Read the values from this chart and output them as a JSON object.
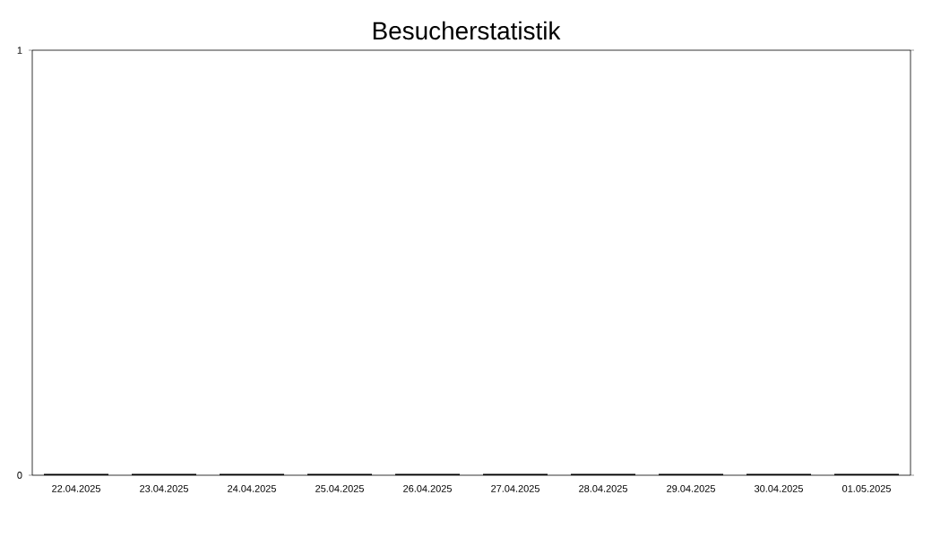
{
  "chart_data": {
    "type": "bar",
    "title": "Besucherstatistik",
    "categories": [
      "22.04.2025",
      "23.04.2025",
      "24.04.2025",
      "25.04.2025",
      "26.04.2025",
      "27.04.2025",
      "28.04.2025",
      "29.04.2025",
      "30.04.2025",
      "01.05.2025"
    ],
    "values": [
      0,
      0,
      0,
      0,
      0,
      0,
      0,
      0,
      0,
      0
    ],
    "color": "#000000",
    "ylim": [
      0,
      1
    ],
    "yticks": [
      0,
      1
    ]
  }
}
